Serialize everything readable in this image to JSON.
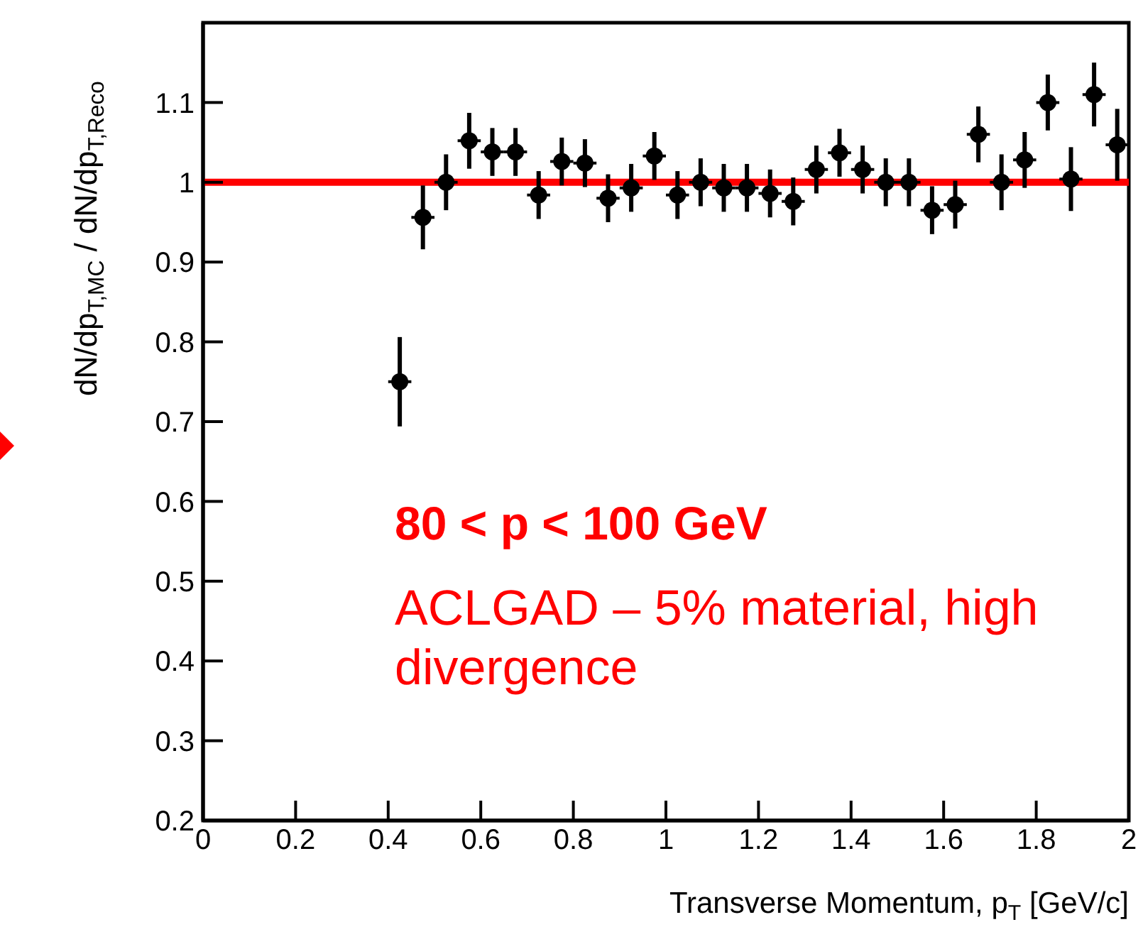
{
  "chart_data": {
    "type": "scatter",
    "xlabel": "Transverse Momentum, p$_{T}$ [GeV/c]",
    "ylabel": "dN/dp$_{T,MC}$ / dN/dp$_{T,Reco}$",
    "x": [
      0.425,
      0.475,
      0.525,
      0.575,
      0.625,
      0.675,
      0.725,
      0.775,
      0.825,
      0.875,
      0.925,
      0.975,
      1.025,
      1.075,
      1.125,
      1.175,
      1.225,
      1.275,
      1.325,
      1.375,
      1.425,
      1.475,
      1.525,
      1.575,
      1.625,
      1.675,
      1.725,
      1.775,
      1.825,
      1.875,
      1.925,
      1.975
    ],
    "series": [
      {
        "color": "#000000",
        "values": [
          0.75,
          0.956,
          1.0,
          1.052,
          1.038,
          1.038,
          0.984,
          1.026,
          1.024,
          0.98,
          0.993,
          1.033,
          0.984,
          1.0,
          0.993,
          0.993,
          0.986,
          0.976,
          1.016,
          1.037,
          1.016,
          1.0,
          1.0,
          0.965,
          0.972,
          1.06,
          1.0,
          1.028,
          1.1,
          1.004,
          1.11,
          1.047
        ],
        "errors": [
          0.056,
          0.04,
          0.035,
          0.035,
          0.03,
          0.03,
          0.03,
          0.03,
          0.03,
          0.03,
          0.03,
          0.03,
          0.03,
          0.03,
          0.03,
          0.03,
          0.03,
          0.03,
          0.03,
          0.03,
          0.03,
          0.03,
          0.03,
          0.03,
          0.03,
          0.035,
          0.035,
          0.035,
          0.035,
          0.04,
          0.04,
          0.045
        ],
        "xerrors": [
          0.025,
          0.025,
          0.025,
          0.025,
          0.025,
          0.025,
          0.025,
          0.025,
          0.025,
          0.025,
          0.025,
          0.025,
          0.025,
          0.025,
          0.025,
          0.025,
          0.025,
          0.025,
          0.025,
          0.025,
          0.025,
          0.025,
          0.025,
          0.025,
          0.025,
          0.025,
          0.025,
          0.025,
          0.025,
          0.025,
          0.025,
          0.025
        ]
      }
    ],
    "xlim": [
      0,
      2
    ],
    "xticks": [
      0,
      0.2,
      0.4,
      0.6,
      0.8,
      1,
      1.2,
      1.4,
      1.6,
      1.8,
      2
    ],
    "ylim": [
      0.2,
      1.2
    ],
    "yticks": [
      0.2,
      0.3,
      0.4,
      0.5,
      0.6,
      0.7,
      0.8,
      0.9,
      1,
      1.1
    ],
    "ref_lines": [
      {
        "axis": "y",
        "value": 1,
        "color": "#ff0000"
      }
    ],
    "annotations": [
      "80 < p < 100 GeV",
      "ACLGAD – 5% material, high divergence"
    ],
    "marker": "circle"
  }
}
